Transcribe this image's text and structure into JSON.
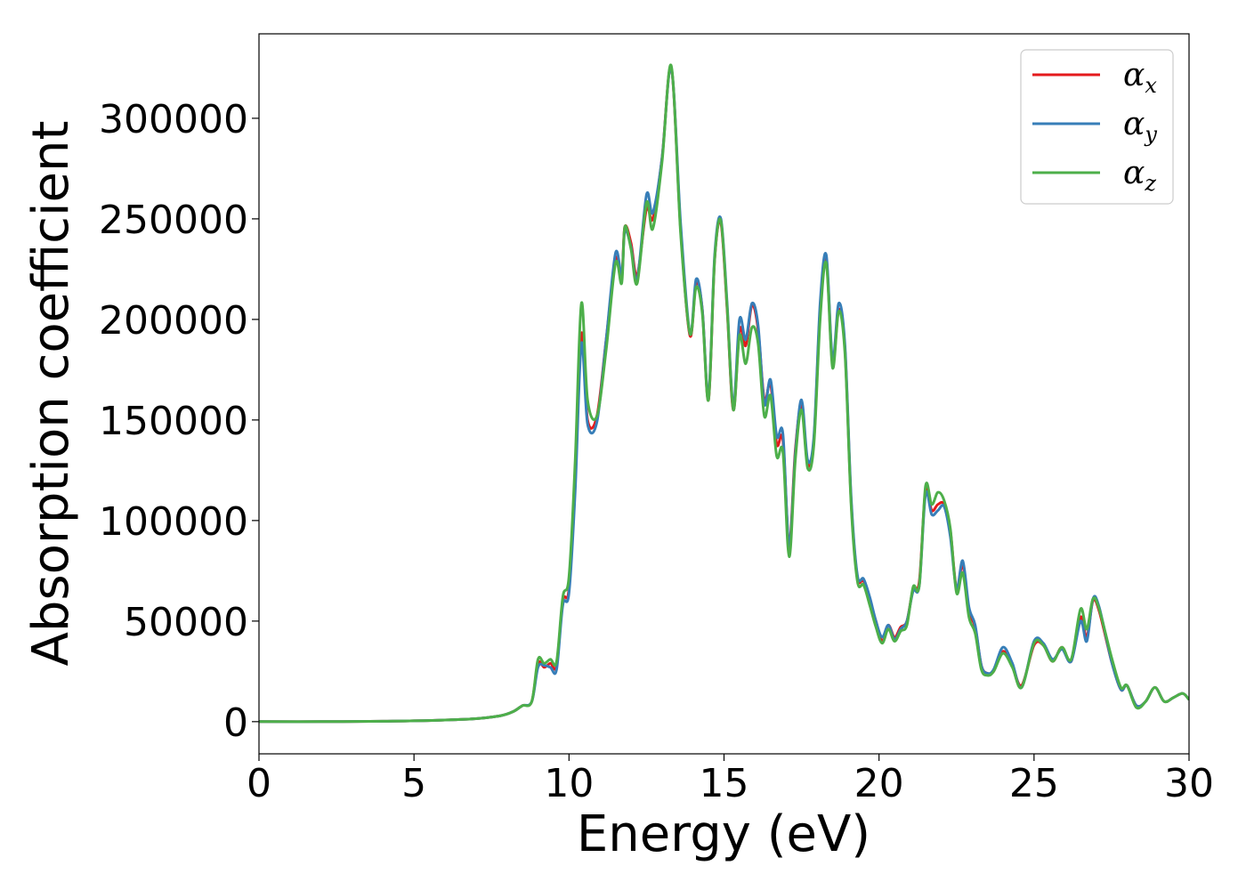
{
  "chart_data": {
    "type": "line",
    "title": "",
    "xlabel": "Energy (eV)",
    "ylabel": "Absorption coefficient",
    "xlim": [
      0,
      30
    ],
    "ylim": [
      -16000,
      342000
    ],
    "xticks": [
      0,
      5,
      10,
      15,
      20,
      25,
      30
    ],
    "yticks": [
      0,
      50000,
      100000,
      150000,
      200000,
      250000,
      300000
    ],
    "grid": false,
    "legend": {
      "placement": "top-right",
      "entries": [
        {
          "symbol": "α",
          "sub": "x",
          "color": "#e41a1c"
        },
        {
          "symbol": "α",
          "sub": "y",
          "color": "#377eb8"
        },
        {
          "symbol": "α",
          "sub": "z",
          "color": "#4daf4a"
        }
      ]
    },
    "series": [
      {
        "name": "αx",
        "color": "#e41a1c",
        "points": [
          [
            0,
            0
          ],
          [
            2,
            0
          ],
          [
            4,
            200
          ],
          [
            5,
            400
          ],
          [
            6,
            800
          ],
          [
            7,
            1500
          ],
          [
            7.8,
            3000
          ],
          [
            8.2,
            5000
          ],
          [
            8.5,
            8000
          ],
          [
            8.8,
            10000
          ],
          [
            9.0,
            29000
          ],
          [
            9.2,
            27000
          ],
          [
            9.4,
            29000
          ],
          [
            9.6,
            28000
          ],
          [
            9.8,
            60000
          ],
          [
            10.0,
            66000
          ],
          [
            10.2,
            120000
          ],
          [
            10.4,
            193000
          ],
          [
            10.6,
            150000
          ],
          [
            10.9,
            152000
          ],
          [
            11.2,
            190000
          ],
          [
            11.5,
            230000
          ],
          [
            11.7,
            222000
          ],
          [
            11.8,
            246000
          ],
          [
            12.0,
            238000
          ],
          [
            12.2,
            222000
          ],
          [
            12.5,
            255000
          ],
          [
            12.7,
            250000
          ],
          [
            13.0,
            280000
          ],
          [
            13.3,
            325000
          ],
          [
            13.6,
            245000
          ],
          [
            13.9,
            192000
          ],
          [
            14.1,
            218000
          ],
          [
            14.3,
            205000
          ],
          [
            14.5,
            160000
          ],
          [
            14.7,
            230000
          ],
          [
            14.9,
            248000
          ],
          [
            15.1,
            205000
          ],
          [
            15.3,
            155000
          ],
          [
            15.5,
            195000
          ],
          [
            15.7,
            187000
          ],
          [
            15.9,
            207000
          ],
          [
            16.1,
            195000
          ],
          [
            16.3,
            160000
          ],
          [
            16.5,
            168000
          ],
          [
            16.7,
            138000
          ],
          [
            16.9,
            140000
          ],
          [
            17.1,
            88000
          ],
          [
            17.3,
            135000
          ],
          [
            17.5,
            157000
          ],
          [
            17.7,
            128000
          ],
          [
            17.9,
            140000
          ],
          [
            18.1,
            205000
          ],
          [
            18.3,
            230000
          ],
          [
            18.5,
            178000
          ],
          [
            18.7,
            205000
          ],
          [
            18.9,
            185000
          ],
          [
            19.1,
            110000
          ],
          [
            19.3,
            72000
          ],
          [
            19.5,
            70000
          ],
          [
            19.7,
            60000
          ],
          [
            19.9,
            50000
          ],
          [
            20.1,
            40000
          ],
          [
            20.3,
            48000
          ],
          [
            20.5,
            42000
          ],
          [
            20.7,
            47000
          ],
          [
            20.9,
            50000
          ],
          [
            21.1,
            66000
          ],
          [
            21.3,
            70000
          ],
          [
            21.5,
            115000
          ],
          [
            21.7,
            105000
          ],
          [
            21.9,
            108000
          ],
          [
            22.1,
            108000
          ],
          [
            22.3,
            95000
          ],
          [
            22.5,
            66000
          ],
          [
            22.7,
            78000
          ],
          [
            22.9,
            55000
          ],
          [
            23.1,
            47000
          ],
          [
            23.3,
            28000
          ],
          [
            23.5,
            24000
          ],
          [
            23.7,
            25000
          ],
          [
            24.0,
            35000
          ],
          [
            24.3,
            28000
          ],
          [
            24.6,
            18000
          ],
          [
            25.0,
            38000
          ],
          [
            25.3,
            38000
          ],
          [
            25.6,
            30000
          ],
          [
            25.9,
            37000
          ],
          [
            26.2,
            30000
          ],
          [
            26.5,
            52000
          ],
          [
            26.7,
            42000
          ],
          [
            26.9,
            60000
          ],
          [
            27.1,
            55000
          ],
          [
            27.5,
            30000
          ],
          [
            27.8,
            16000
          ],
          [
            28.0,
            18000
          ],
          [
            28.3,
            8000
          ],
          [
            28.6,
            10000
          ],
          [
            28.9,
            17000
          ],
          [
            29.2,
            10000
          ],
          [
            29.5,
            12000
          ],
          [
            29.8,
            14000
          ],
          [
            30.0,
            11000
          ]
        ]
      },
      {
        "name": "αy",
        "color": "#377eb8",
        "points": [
          [
            0,
            0
          ],
          [
            2,
            0
          ],
          [
            4,
            200
          ],
          [
            5,
            400
          ],
          [
            6,
            800
          ],
          [
            7,
            1500
          ],
          [
            7.8,
            3000
          ],
          [
            8.2,
            5000
          ],
          [
            8.5,
            8000
          ],
          [
            8.8,
            10000
          ],
          [
            9.0,
            27000
          ],
          [
            9.2,
            28000
          ],
          [
            9.4,
            27000
          ],
          [
            9.6,
            26000
          ],
          [
            9.8,
            58000
          ],
          [
            10.0,
            64000
          ],
          [
            10.2,
            115000
          ],
          [
            10.4,
            188000
          ],
          [
            10.6,
            148000
          ],
          [
            10.9,
            149000
          ],
          [
            11.2,
            190000
          ],
          [
            11.5,
            233000
          ],
          [
            11.7,
            222000
          ],
          [
            11.8,
            244000
          ],
          [
            12.0,
            236000
          ],
          [
            12.2,
            220000
          ],
          [
            12.5,
            262000
          ],
          [
            12.7,
            253000
          ],
          [
            13.0,
            280000
          ],
          [
            13.3,
            325000
          ],
          [
            13.6,
            248000
          ],
          [
            13.9,
            193000
          ],
          [
            14.1,
            220000
          ],
          [
            14.3,
            205000
          ],
          [
            14.5,
            162000
          ],
          [
            14.7,
            232000
          ],
          [
            14.9,
            250000
          ],
          [
            15.1,
            208000
          ],
          [
            15.3,
            157000
          ],
          [
            15.5,
            200000
          ],
          [
            15.7,
            190000
          ],
          [
            15.9,
            208000
          ],
          [
            16.1,
            197000
          ],
          [
            16.3,
            158000
          ],
          [
            16.5,
            170000
          ],
          [
            16.7,
            142000
          ],
          [
            16.9,
            143000
          ],
          [
            17.1,
            87000
          ],
          [
            17.3,
            133000
          ],
          [
            17.5,
            160000
          ],
          [
            17.7,
            130000
          ],
          [
            17.9,
            142000
          ],
          [
            18.1,
            208000
          ],
          [
            18.3,
            232000
          ],
          [
            18.5,
            180000
          ],
          [
            18.7,
            208000
          ],
          [
            18.9,
            187000
          ],
          [
            19.1,
            112000
          ],
          [
            19.3,
            73000
          ],
          [
            19.5,
            71000
          ],
          [
            19.7,
            62000
          ],
          [
            19.9,
            50000
          ],
          [
            20.1,
            42000
          ],
          [
            20.3,
            48000
          ],
          [
            20.5,
            41000
          ],
          [
            20.7,
            46000
          ],
          [
            20.9,
            50000
          ],
          [
            21.1,
            65000
          ],
          [
            21.3,
            68000
          ],
          [
            21.5,
            113000
          ],
          [
            21.7,
            103000
          ],
          [
            21.9,
            105000
          ],
          [
            22.1,
            107000
          ],
          [
            22.3,
            92000
          ],
          [
            22.5,
            66000
          ],
          [
            22.7,
            80000
          ],
          [
            22.9,
            57000
          ],
          [
            23.1,
            48000
          ],
          [
            23.3,
            28000
          ],
          [
            23.5,
            24000
          ],
          [
            23.7,
            26000
          ],
          [
            24.0,
            37000
          ],
          [
            24.3,
            29000
          ],
          [
            24.6,
            17000
          ],
          [
            25.0,
            40000
          ],
          [
            25.3,
            39000
          ],
          [
            25.6,
            31000
          ],
          [
            25.9,
            36000
          ],
          [
            26.2,
            30000
          ],
          [
            26.5,
            50000
          ],
          [
            26.7,
            40000
          ],
          [
            26.9,
            61000
          ],
          [
            27.1,
            57000
          ],
          [
            27.5,
            30000
          ],
          [
            27.8,
            16000
          ],
          [
            28.0,
            18000
          ],
          [
            28.3,
            8000
          ],
          [
            28.6,
            10000
          ],
          [
            28.9,
            17000
          ],
          [
            29.2,
            10000
          ],
          [
            29.5,
            12000
          ],
          [
            29.8,
            14000
          ],
          [
            30.0,
            11000
          ]
        ]
      },
      {
        "name": "αz",
        "color": "#4daf4a",
        "points": [
          [
            0,
            0
          ],
          [
            2,
            0
          ],
          [
            4,
            200
          ],
          [
            5,
            400
          ],
          [
            6,
            800
          ],
          [
            7,
            1500
          ],
          [
            7.8,
            3000
          ],
          [
            8.2,
            5000
          ],
          [
            8.5,
            8000
          ],
          [
            8.8,
            10000
          ],
          [
            9.0,
            31000
          ],
          [
            9.2,
            29000
          ],
          [
            9.4,
            31000
          ],
          [
            9.6,
            30000
          ],
          [
            9.8,
            62000
          ],
          [
            10.0,
            72000
          ],
          [
            10.2,
            130000
          ],
          [
            10.4,
            208000
          ],
          [
            10.6,
            160000
          ],
          [
            10.9,
            152000
          ],
          [
            11.2,
            185000
          ],
          [
            11.5,
            228000
          ],
          [
            11.7,
            218000
          ],
          [
            11.8,
            246000
          ],
          [
            12.0,
            235000
          ],
          [
            12.2,
            218000
          ],
          [
            12.5,
            258000
          ],
          [
            12.7,
            245000
          ],
          [
            13.0,
            278000
          ],
          [
            13.3,
            326000
          ],
          [
            13.6,
            243000
          ],
          [
            13.9,
            193000
          ],
          [
            14.1,
            216000
          ],
          [
            14.3,
            203000
          ],
          [
            14.5,
            160000
          ],
          [
            14.7,
            230000
          ],
          [
            14.9,
            249000
          ],
          [
            15.1,
            206000
          ],
          [
            15.3,
            155000
          ],
          [
            15.5,
            192000
          ],
          [
            15.7,
            178000
          ],
          [
            15.9,
            196000
          ],
          [
            16.1,
            188000
          ],
          [
            16.3,
            152000
          ],
          [
            16.5,
            162000
          ],
          [
            16.7,
            132000
          ],
          [
            16.9,
            134000
          ],
          [
            17.1,
            82000
          ],
          [
            17.3,
            130000
          ],
          [
            17.5,
            155000
          ],
          [
            17.7,
            126000
          ],
          [
            17.9,
            138000
          ],
          [
            18.1,
            200000
          ],
          [
            18.3,
            228000
          ],
          [
            18.5,
            176000
          ],
          [
            18.7,
            204000
          ],
          [
            18.9,
            183000
          ],
          [
            19.1,
            108000
          ],
          [
            19.3,
            70000
          ],
          [
            19.5,
            68000
          ],
          [
            19.7,
            58000
          ],
          [
            19.9,
            47000
          ],
          [
            20.1,
            39000
          ],
          [
            20.3,
            46000
          ],
          [
            20.5,
            40000
          ],
          [
            20.7,
            45000
          ],
          [
            20.9,
            48000
          ],
          [
            21.1,
            67000
          ],
          [
            21.3,
            68000
          ],
          [
            21.5,
            117000
          ],
          [
            21.7,
            108000
          ],
          [
            21.9,
            114000
          ],
          [
            22.1,
            110000
          ],
          [
            22.3,
            96000
          ],
          [
            22.5,
            64000
          ],
          [
            22.7,
            74000
          ],
          [
            22.9,
            52000
          ],
          [
            23.1,
            44000
          ],
          [
            23.3,
            26000
          ],
          [
            23.5,
            23000
          ],
          [
            23.7,
            25000
          ],
          [
            24.0,
            34000
          ],
          [
            24.3,
            27000
          ],
          [
            24.6,
            17000
          ],
          [
            25.0,
            39000
          ],
          [
            25.3,
            38000
          ],
          [
            25.6,
            30000
          ],
          [
            25.9,
            37000
          ],
          [
            26.2,
            31000
          ],
          [
            26.5,
            56000
          ],
          [
            26.7,
            46000
          ],
          [
            26.9,
            61000
          ],
          [
            27.1,
            56000
          ],
          [
            27.5,
            32000
          ],
          [
            27.8,
            17000
          ],
          [
            28.0,
            18000
          ],
          [
            28.3,
            7000
          ],
          [
            28.6,
            10000
          ],
          [
            28.9,
            17000
          ],
          [
            29.2,
            10000
          ],
          [
            29.5,
            12000
          ],
          [
            29.8,
            14000
          ],
          [
            30.0,
            11000
          ]
        ]
      }
    ]
  }
}
